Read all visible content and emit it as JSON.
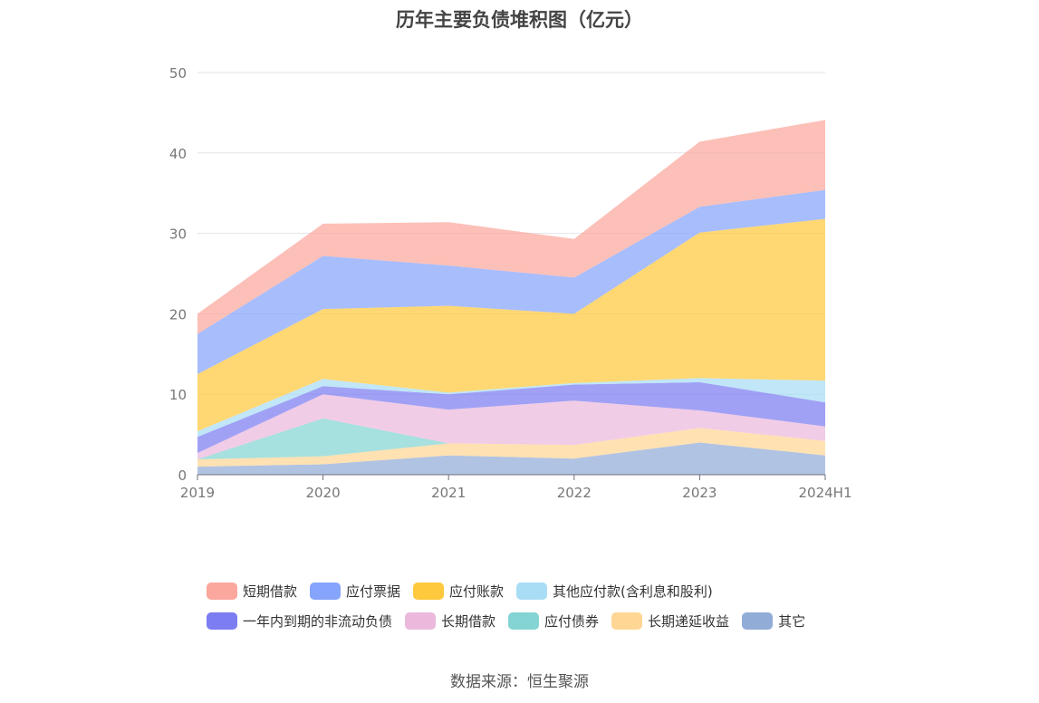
{
  "chart_data": {
    "type": "area",
    "stacked": true,
    "title": "历年主要负债堆积图（亿元）",
    "categories": [
      "2019",
      "2020",
      "2021",
      "2022",
      "2023",
      "2024H1"
    ],
    "ylim": [
      0,
      50
    ],
    "yticks": [
      0,
      10,
      20,
      30,
      40,
      50
    ],
    "grid": true,
    "legend_position": "bottom",
    "series": [
      {
        "name": "其它",
        "color": "#92acd8",
        "values": [
          1.0,
          1.3,
          2.4,
          2.0,
          4.0,
          2.4
        ]
      },
      {
        "name": "长期递延收益",
        "color": "#ffd694",
        "values": [
          0.9,
          1.0,
          1.5,
          1.7,
          1.8,
          1.8
        ]
      },
      {
        "name": "应付债券",
        "color": "#84d4d3",
        "values": [
          0.0,
          4.7,
          0.0,
          0.0,
          0.0,
          0.0
        ]
      },
      {
        "name": "长期借款",
        "color": "#ebb9dc",
        "values": [
          0.8,
          3.0,
          4.2,
          5.5,
          2.2,
          1.8
        ]
      },
      {
        "name": "一年内到期的非流动负债",
        "color": "#7c7df1",
        "values": [
          2.0,
          1.0,
          1.9,
          2.0,
          3.5,
          3.0
        ]
      },
      {
        "name": "其他应付款(含利息和股利)",
        "color": "#a8ddf5",
        "values": [
          0.7,
          0.9,
          0.2,
          0.2,
          0.5,
          2.7
        ]
      },
      {
        "name": "应付账款",
        "color": "#ffc93d",
        "values": [
          7.1,
          8.7,
          10.8,
          8.6,
          18.1,
          20.1
        ]
      },
      {
        "name": "应付票据",
        "color": "#86a4fb",
        "values": [
          5.0,
          6.6,
          5.0,
          4.5,
          3.2,
          3.6
        ]
      },
      {
        "name": "短期借款",
        "color": "#fba79d",
        "values": [
          2.5,
          4.0,
          5.4,
          4.8,
          8.1,
          8.7
        ]
      }
    ]
  },
  "legend_rows": [
    [
      {
        "label": "短期借款",
        "color": "#fba79d"
      },
      {
        "label": "应付票据",
        "color": "#86a4fb"
      },
      {
        "label": "应付账款",
        "color": "#ffc93d"
      },
      {
        "label": "其他应付款(含利息和股利)",
        "color": "#a8ddf5"
      }
    ],
    [
      {
        "label": "一年内到期的非流动负债",
        "color": "#7c7df1"
      },
      {
        "label": "长期借款",
        "color": "#ebb9dc"
      },
      {
        "label": "应付债券",
        "color": "#84d4d3"
      },
      {
        "label": "长期递延收益",
        "color": "#ffd694"
      },
      {
        "label": "其它",
        "color": "#92acd8"
      }
    ]
  ],
  "source": "数据来源：恒生聚源"
}
